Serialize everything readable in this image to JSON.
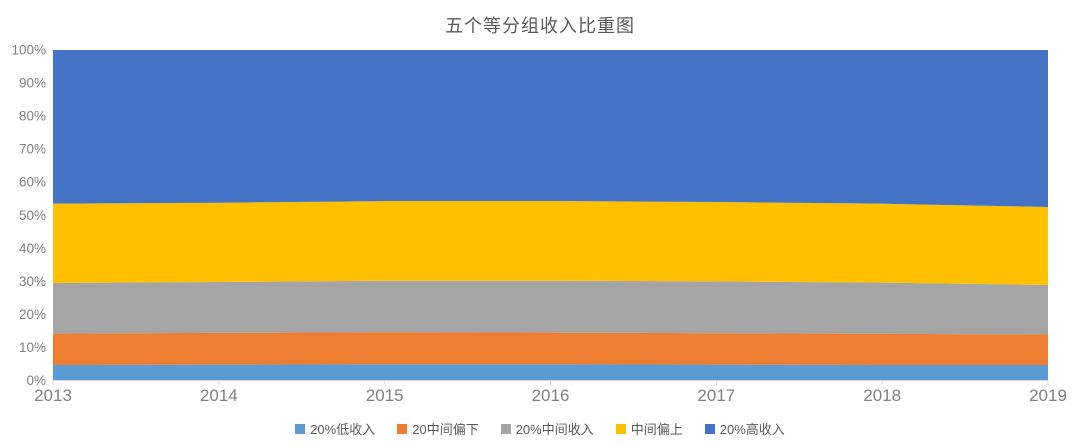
{
  "chart_data": {
    "type": "area",
    "stacked": true,
    "percent_stacked": true,
    "title": "五个等分组收入比重图",
    "categories": [
      "2013",
      "2014",
      "2015",
      "2016",
      "2017",
      "2018",
      "2019"
    ],
    "series": [
      {
        "name": "20%低收入",
        "color": "#5B9BD5",
        "values": [
          4.7,
          4.8,
          4.9,
          4.9,
          4.8,
          4.7,
          4.7
        ]
      },
      {
        "name": "20中间偏下",
        "color": "#ED7D31",
        "values": [
          9.5,
          9.6,
          9.7,
          9.6,
          9.5,
          9.4,
          9.2
        ]
      },
      {
        "name": "20%中间收入",
        "color": "#A5A5A5",
        "values": [
          15.3,
          15.4,
          15.6,
          15.7,
          15.7,
          15.5,
          15.0
        ]
      },
      {
        "name": "中间偏上",
        "color": "#FFC000",
        "values": [
          24.0,
          24.0,
          24.1,
          24.1,
          24.0,
          23.9,
          23.6
        ]
      },
      {
        "name": "20%高收入",
        "color": "#4472C4",
        "values": [
          46.5,
          46.2,
          45.7,
          45.7,
          46.0,
          46.5,
          47.5
        ]
      }
    ],
    "y_axis": {
      "min": 0,
      "max": 100,
      "tick_step": 10,
      "tick_labels": [
        "0%",
        "10%",
        "20%",
        "30%",
        "40%",
        "50%",
        "60%",
        "70%",
        "80%",
        "90%",
        "100%"
      ]
    },
    "x_axis": {
      "tick_labels": [
        "2013",
        "2014",
        "2015",
        "2016",
        "2017",
        "2018",
        "2019"
      ]
    },
    "legend_position": "bottom",
    "grid": false
  },
  "colors": {
    "background": "#FFFFFF",
    "title_text": "#595959",
    "axis_text": "#808080",
    "axis_line": "#D9D9D9",
    "legend_text": "#595959"
  }
}
